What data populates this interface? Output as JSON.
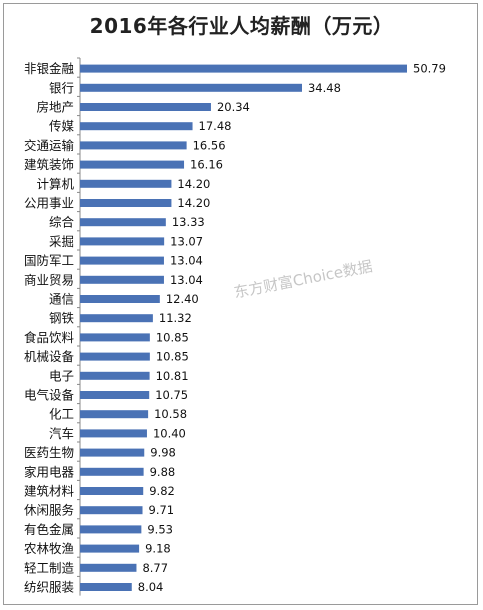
{
  "chart_data": {
    "type": "bar",
    "orientation": "horizontal",
    "title": "2016年各行业人均薪酬（万元）",
    "xlabel": "",
    "ylabel": "",
    "xlim": [
      0,
      55
    ],
    "grid": false,
    "legend": "none",
    "bar_color": "#4a72b5",
    "categories": [
      "非银金融",
      "银行",
      "房地产",
      "传媒",
      "交通运输",
      "建筑装饰",
      "计算机",
      "公用事业",
      "综合",
      "采掘",
      "国防军工",
      "商业贸易",
      "通信",
      "钢铁",
      "食品饮料",
      "机械设备",
      "电子",
      "电气设备",
      "化工",
      "汽车",
      "医药生物",
      "家用电器",
      "建筑材料",
      "休闲服务",
      "有色金属",
      "农林牧渔",
      "轻工制造",
      "纺织服装"
    ],
    "values": [
      50.79,
      34.48,
      20.34,
      17.48,
      16.56,
      16.16,
      14.2,
      14.2,
      13.33,
      13.07,
      13.04,
      13.04,
      12.4,
      11.32,
      10.85,
      10.85,
      10.81,
      10.75,
      10.58,
      10.4,
      9.98,
      9.88,
      9.82,
      9.71,
      9.53,
      9.18,
      8.77,
      8.04
    ],
    "value_labels": [
      "50.79",
      "34.48",
      "20.34",
      "17.48",
      "16.56",
      "16.16",
      "14.20",
      "14.20",
      "13.33",
      "13.07",
      "13.04",
      "13.04",
      "12.40",
      "11.32",
      "10.85",
      "10.85",
      "10.81",
      "10.75",
      "10.58",
      "10.40",
      "9.98",
      "9.88",
      "9.82",
      "9.71",
      "9.53",
      "9.18",
      "8.77",
      "8.04"
    ]
  },
  "watermark": "东方财富Choice数据"
}
